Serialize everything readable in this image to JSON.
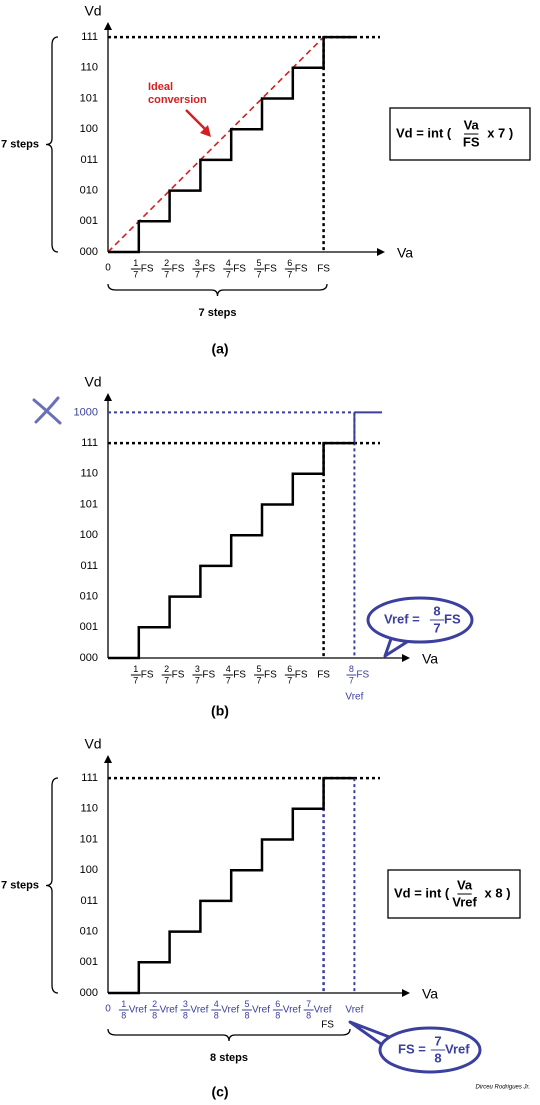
{
  "panels": [
    {
      "label": "(a)",
      "y_axis_title": "Vd",
      "x_axis_title": "Va",
      "origin": "0",
      "y_labels": [
        "000",
        "001",
        "010",
        "011",
        "100",
        "101",
        "110",
        "111"
      ],
      "x_labels": [
        {
          "numerator": "1",
          "denominator": "7",
          "unit": "FS"
        },
        {
          "numerator": "2",
          "denominator": "7",
          "unit": "FS"
        },
        {
          "numerator": "3",
          "denominator": "7",
          "unit": "FS"
        },
        {
          "numerator": "4",
          "denominator": "7",
          "unit": "FS"
        },
        {
          "numerator": "5",
          "denominator": "7",
          "unit": "FS"
        },
        {
          "numerator": "6",
          "denominator": "7",
          "unit": "FS"
        },
        {
          "text": "FS"
        }
      ],
      "annotation": [
        "Ideal",
        "conversion"
      ],
      "formula": {
        "lhs": "Vd = int (",
        "numerator": "Va",
        "denominator": "FS",
        "rhs": "x 7 )"
      },
      "left_brace": "7 steps",
      "bottom_brace": "7 steps"
    },
    {
      "label": "(b)",
      "y_axis_title": "Vd",
      "x_axis_title": "Va",
      "y_labels": [
        "000",
        "001",
        "010",
        "011",
        "100",
        "101",
        "110",
        "111",
        "1000"
      ],
      "x_labels": [
        {
          "numerator": "1",
          "denominator": "7",
          "unit": "FS"
        },
        {
          "numerator": "2",
          "denominator": "7",
          "unit": "FS"
        },
        {
          "numerator": "3",
          "denominator": "7",
          "unit": "FS"
        },
        {
          "numerator": "4",
          "denominator": "7",
          "unit": "FS"
        },
        {
          "numerator": "5",
          "denominator": "7",
          "unit": "FS"
        },
        {
          "numerator": "6",
          "denominator": "7",
          "unit": "FS"
        },
        {
          "text": "FS"
        },
        {
          "numerator": "8",
          "denominator": "7",
          "unit": "FS"
        }
      ],
      "sub_label": "Vref",
      "bubble": {
        "lhs": "Vref =",
        "numerator": "8",
        "denominator": "7",
        "rhs": "FS"
      }
    },
    {
      "label": "(c)",
      "y_axis_title": "Vd",
      "x_axis_title": "Va",
      "origin": "0",
      "y_labels": [
        "000",
        "001",
        "010",
        "011",
        "100",
        "101",
        "110",
        "111"
      ],
      "x_labels": [
        {
          "numerator": "1",
          "denominator": "8",
          "unit": "Vref"
        },
        {
          "numerator": "2",
          "denominator": "8",
          "unit": "Vref"
        },
        {
          "numerator": "3",
          "denominator": "8",
          "unit": "Vref"
        },
        {
          "numerator": "4",
          "denominator": "8",
          "unit": "Vref"
        },
        {
          "numerator": "5",
          "denominator": "8",
          "unit": "Vref"
        },
        {
          "numerator": "6",
          "denominator": "8",
          "unit": "Vref"
        },
        {
          "numerator": "7",
          "denominator": "8",
          "unit": "Vref"
        },
        {
          "text": "Vref"
        }
      ],
      "fs_label": "FS",
      "formula": {
        "lhs": "Vd = int (",
        "numerator": "Va",
        "denominator": "Vref",
        "rhs": "x 8 )"
      },
      "bubble": {
        "lhs": "FS =",
        "numerator": "7",
        "denominator": "8",
        "rhs": "Vref"
      },
      "left_brace": "7 steps",
      "bottom_brace": "8 steps"
    }
  ],
  "credit": "Dirceu Rodrigues Jr."
}
